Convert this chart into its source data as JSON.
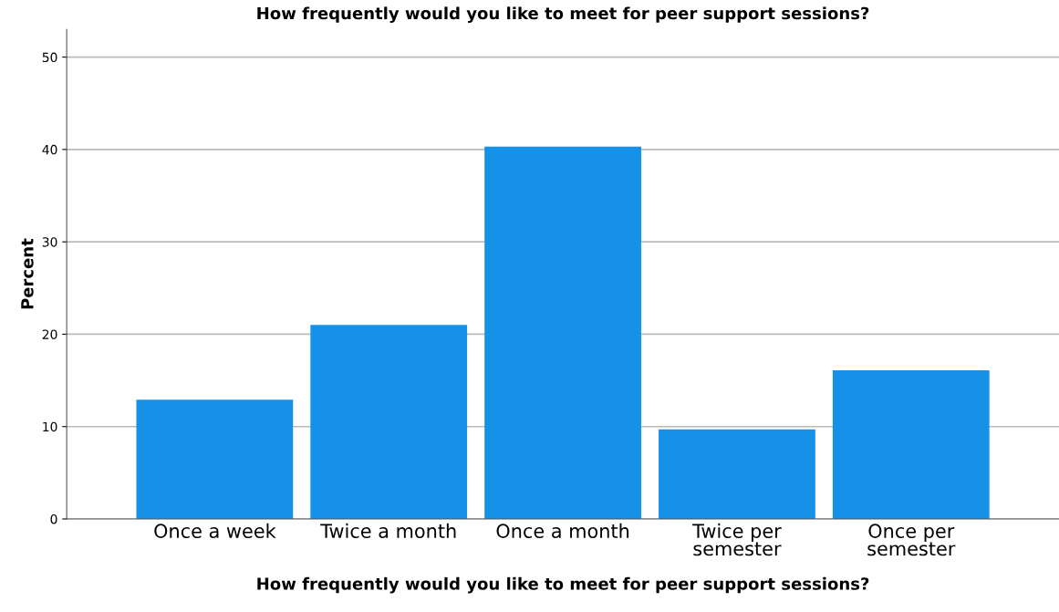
{
  "chart_data": {
    "type": "bar",
    "title": "How frequently would you like to meet for peer support sessions?",
    "xlabel": "How frequently would you like to meet for peer support sessions?",
    "ylabel": "Percent",
    "categories": [
      "Once a week",
      "Twice a month",
      "Once a month",
      "Twice per\nsemester",
      "Once per\nsemester"
    ],
    "values": [
      12.9,
      21.0,
      40.3,
      9.7,
      16.1
    ],
    "color": "#1591e8",
    "ylim": [
      0,
      53
    ],
    "yticks": [
      0,
      10,
      20,
      30,
      40,
      50
    ],
    "grid": "y"
  }
}
